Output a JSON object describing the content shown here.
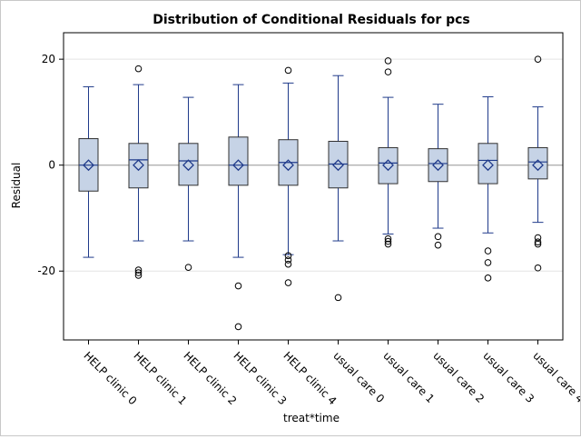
{
  "chart_data": {
    "type": "boxplot",
    "title": "Distribution of Conditional Residuals for pcs",
    "xlabel": "treat*time",
    "ylabel": "Residual",
    "ylim": [
      -33,
      25
    ],
    "yticks": [
      -20,
      0,
      20
    ],
    "grid": true,
    "colors": {
      "box_fill": "#c6d3e6",
      "box_edge": "#2f2f2f",
      "whisker": "#1f3a8a",
      "mean_marker": "#1f3a8a",
      "outlier": "#000000",
      "grid": "#e3e3e3",
      "reference": "#9a9a9a"
    },
    "categories": [
      "HELP clinic 0",
      "HELP clinic 1",
      "HELP clinic 2",
      "HELP clinic 3",
      "HELP clinic 4",
      "usual care 0",
      "usual care 1",
      "usual care 2",
      "usual care 3",
      "usual care 4"
    ],
    "boxes": [
      {
        "min": -17.4,
        "q1": -4.9,
        "median": 0.0,
        "q3": 5.0,
        "max": 14.8,
        "mean": 0.0,
        "outliers": []
      },
      {
        "min": -14.3,
        "q1": -4.3,
        "median": 1.0,
        "q3": 4.1,
        "max": 15.2,
        "mean": 0.0,
        "outliers": [
          18.2,
          -19.8,
          -20.3,
          -20.8
        ]
      },
      {
        "min": -14.3,
        "q1": -3.8,
        "median": 0.8,
        "q3": 4.1,
        "max": 12.8,
        "mean": 0.0,
        "outliers": [
          -19.3
        ]
      },
      {
        "min": -17.4,
        "q1": -3.8,
        "median": 0.0,
        "q3": 5.3,
        "max": 15.2,
        "mean": 0.0,
        "outliers": [
          -22.8,
          -30.5
        ]
      },
      {
        "min": -16.9,
        "q1": -3.8,
        "median": 0.5,
        "q3": 4.8,
        "max": 15.5,
        "mean": 0.0,
        "outliers": [
          17.9,
          -17.1,
          -17.9,
          -18.7,
          -22.2
        ]
      },
      {
        "min": -14.3,
        "q1": -4.3,
        "median": 0.2,
        "q3": 4.5,
        "max": 16.9,
        "mean": 0.0,
        "outliers": [
          -25.0
        ]
      },
      {
        "min": -13.0,
        "q1": -3.5,
        "median": 0.4,
        "q3": 3.3,
        "max": 12.8,
        "mean": 0.0,
        "outliers": [
          19.7,
          17.6,
          -13.9,
          -14.4,
          -14.9
        ]
      },
      {
        "min": -11.9,
        "q1": -3.1,
        "median": 0.3,
        "q3": 3.1,
        "max": 11.5,
        "mean": 0.0,
        "outliers": [
          -13.5,
          -15.1
        ]
      },
      {
        "min": -12.8,
        "q1": -3.5,
        "median": 0.9,
        "q3": 4.1,
        "max": 12.9,
        "mean": 0.0,
        "outliers": [
          -16.2,
          -18.4,
          -21.3
        ]
      },
      {
        "min": -10.8,
        "q1": -2.6,
        "median": 0.6,
        "q3": 3.3,
        "max": 11.0,
        "mean": 0.0,
        "outliers": [
          20.0,
          -13.7,
          -14.5,
          -14.9,
          -19.4
        ]
      }
    ]
  }
}
